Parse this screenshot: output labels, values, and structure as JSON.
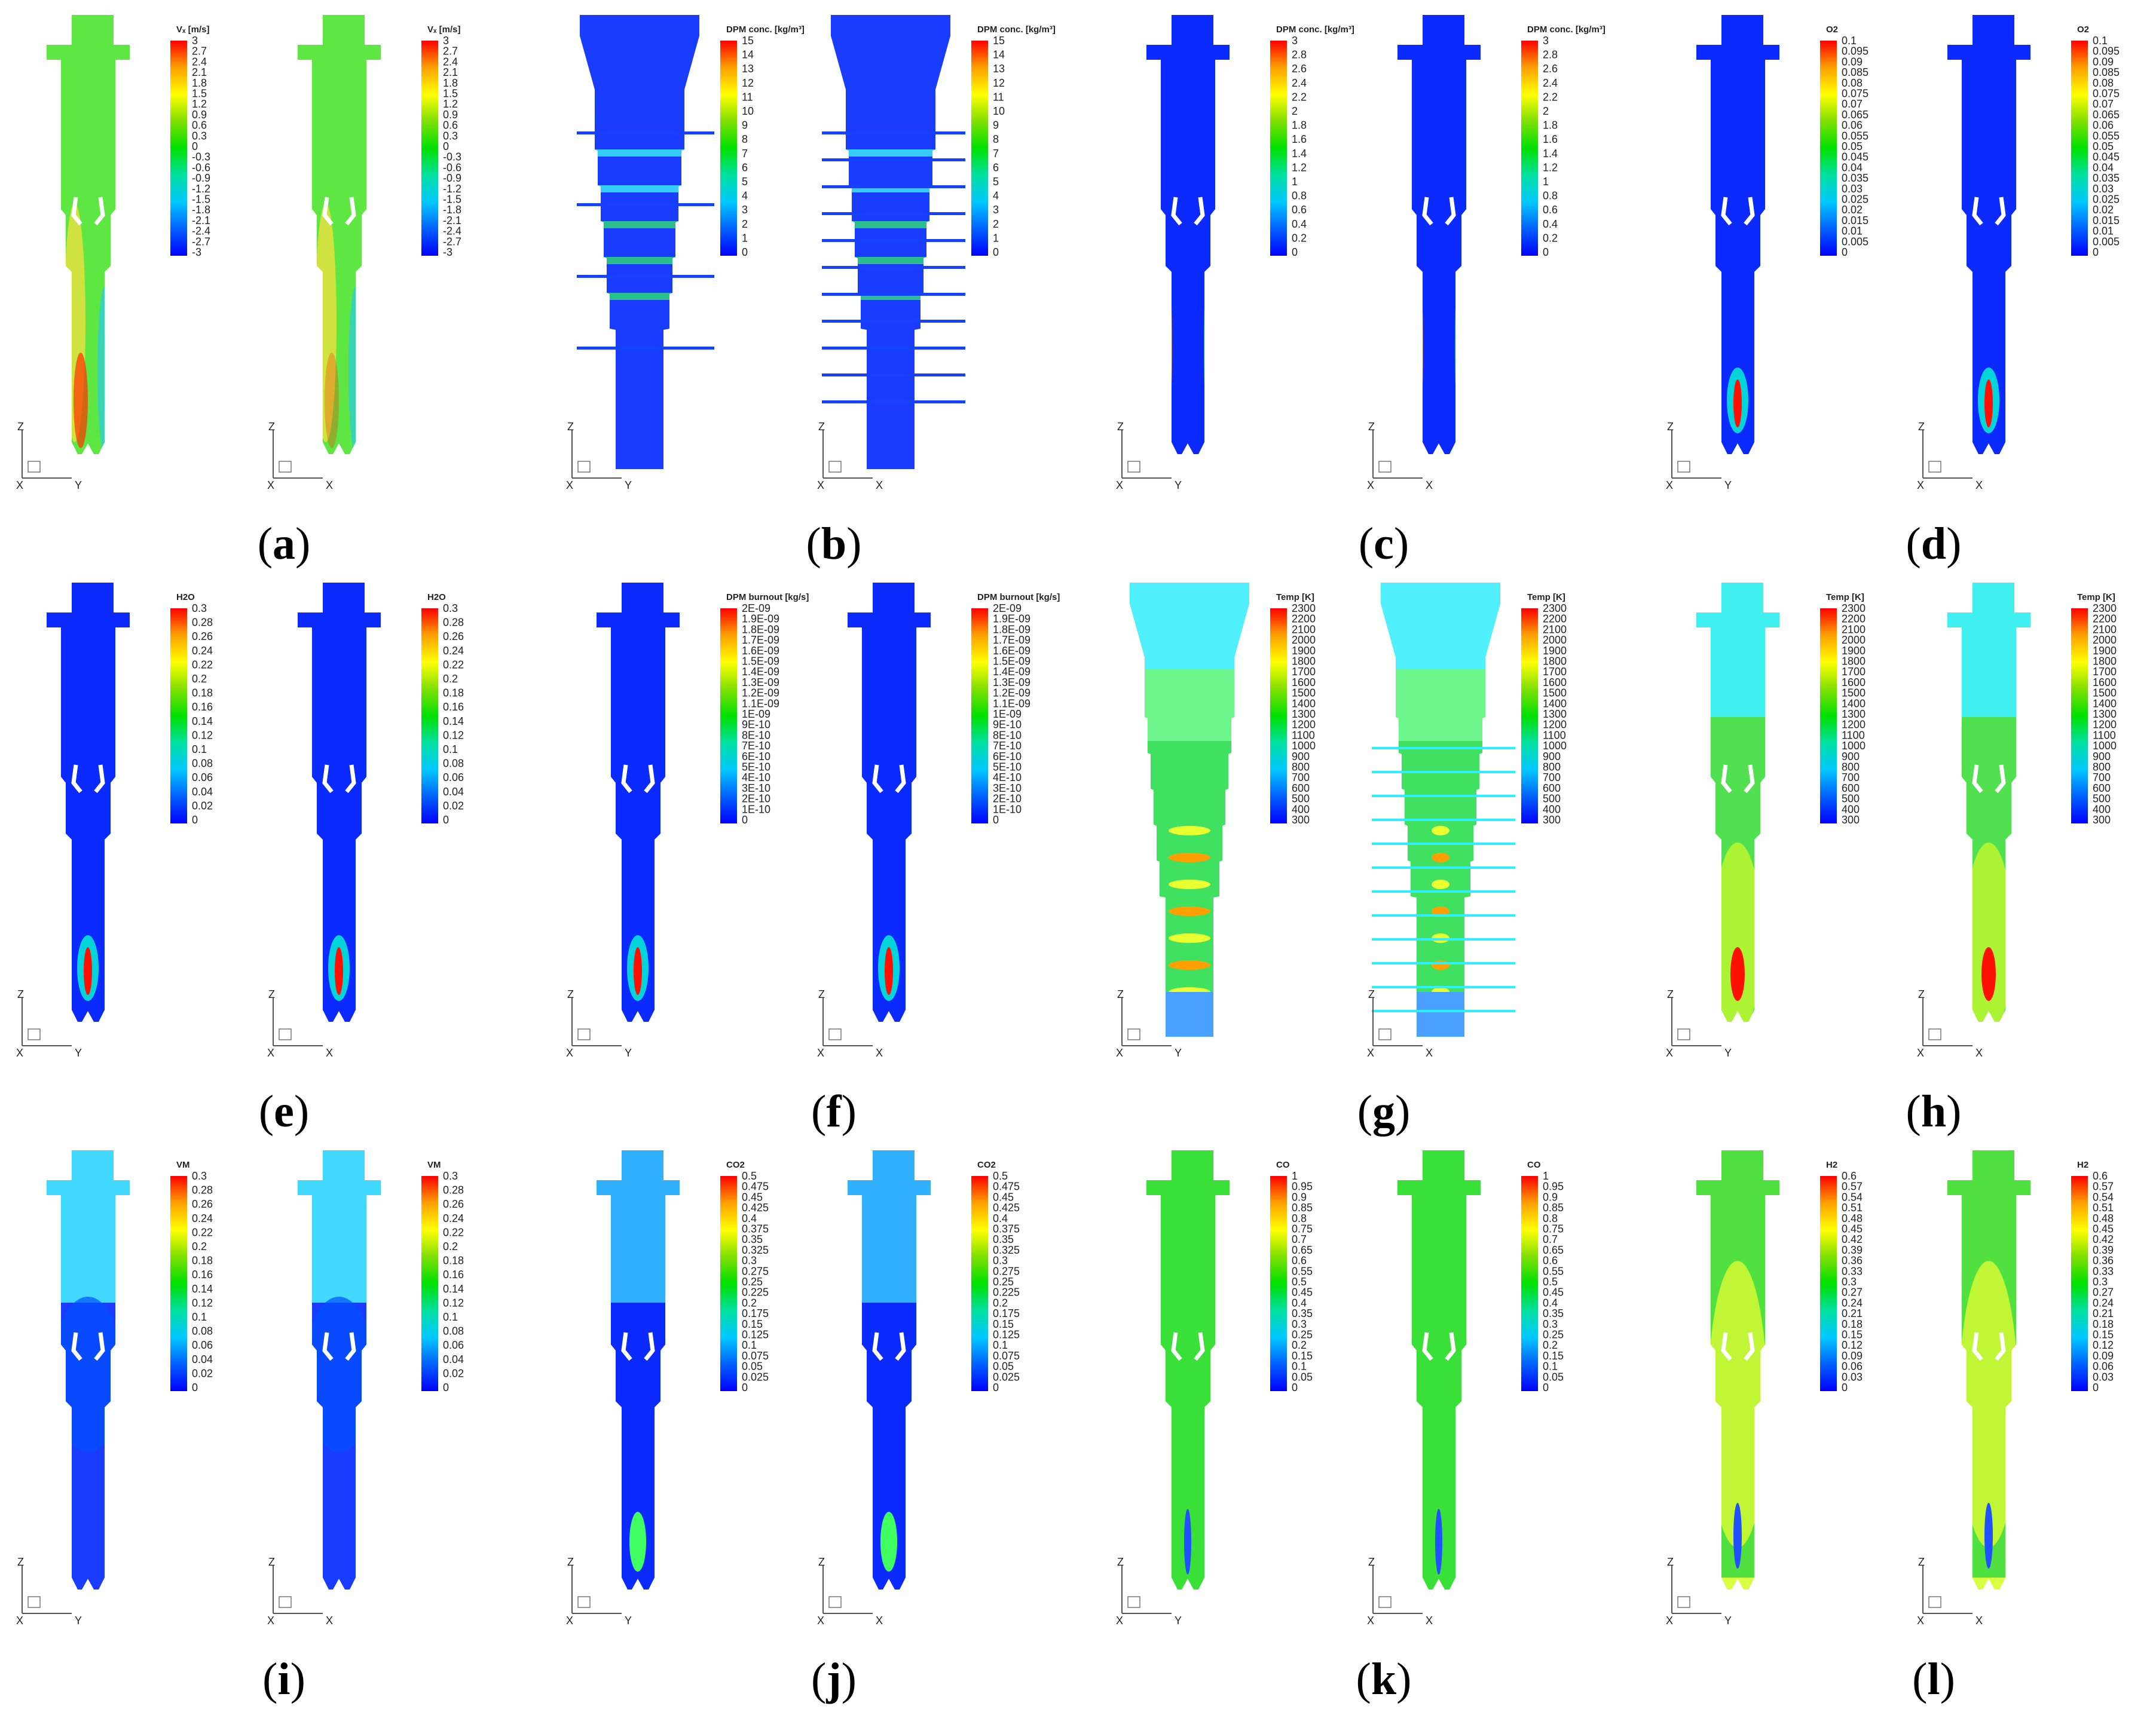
{
  "colors": {
    "scale": [
      "#0000ff",
      "#0060ff",
      "#00c8ff",
      "#00e0a0",
      "#00e000",
      "#80e000",
      "#ffff00",
      "#ffa000",
      "#ff0000"
    ]
  },
  "panels": [
    {
      "label": "a",
      "title": "Vₓ [m/s]",
      "ticks": [
        "3",
        "2.7",
        "2.4",
        "2.1",
        "1.8",
        "1.5",
        "1.2",
        "0.9",
        "0.6",
        "0.3",
        "0",
        "-0.3",
        "-0.6",
        "-0.9",
        "-1.2",
        "-1.5",
        "-1.8",
        "-2.1",
        "-2.4",
        "-2.7",
        "-3"
      ],
      "axes": [
        "Y",
        "X"
      ],
      "bg": "#5ee642",
      "shape": "standard"
    },
    {
      "label": "b",
      "title": "DPM conc. [kg/m³]",
      "ticks": [
        "15",
        "14",
        "13",
        "12",
        "11",
        "10",
        "9",
        "8",
        "7",
        "6",
        "5",
        "4",
        "3",
        "2",
        "1",
        "0"
      ],
      "axes": [
        "Y",
        "X"
      ],
      "bg": "#1a3cff",
      "shape": "funnel"
    },
    {
      "label": "c",
      "title": "DPM conc. [kg/m³]",
      "ticks": [
        "3",
        "2.8",
        "2.6",
        "2.4",
        "2.2",
        "2",
        "1.8",
        "1.6",
        "1.4",
        "1.2",
        "1",
        "0.8",
        "0.6",
        "0.4",
        "0.2",
        "0"
      ],
      "axes": [
        "Y",
        "X"
      ],
      "bg": "#0a2aff",
      "shape": "standard"
    },
    {
      "label": "d",
      "title": "O2",
      "ticks": [
        "0.1",
        "0.095",
        "0.09",
        "0.085",
        "0.08",
        "0.075",
        "0.07",
        "0.065",
        "0.06",
        "0.055",
        "0.05",
        "0.045",
        "0.04",
        "0.035",
        "0.03",
        "0.025",
        "0.02",
        "0.015",
        "0.01",
        "0.005",
        "0"
      ],
      "axes": [
        "Y",
        "X"
      ],
      "bg": "#0a2aff",
      "shape": "standard"
    },
    {
      "label": "e",
      "title": "H2O",
      "ticks": [
        "0.3",
        "0.28",
        "0.26",
        "0.24",
        "0.22",
        "0.2",
        "0.18",
        "0.16",
        "0.14",
        "0.12",
        "0.1",
        "0.08",
        "0.06",
        "0.04",
        "0.02",
        "0"
      ],
      "axes": [
        "Y",
        "X"
      ],
      "bg": "#0a2aff",
      "shape": "standard"
    },
    {
      "label": "f",
      "title": "DPM burnout [kg/s]",
      "ticks": [
        "2E-09",
        "1.9E-09",
        "1.8E-09",
        "1.7E-09",
        "1.6E-09",
        "1.5E-09",
        "1.4E-09",
        "1.3E-09",
        "1.2E-09",
        "1.1E-09",
        "1E-09",
        "9E-10",
        "8E-10",
        "7E-10",
        "6E-10",
        "5E-10",
        "4E-10",
        "3E-10",
        "2E-10",
        "1E-10",
        "0"
      ],
      "axes": [
        "Y",
        "X"
      ],
      "bg": "#0a2aff",
      "shape": "standard"
    },
    {
      "label": "g",
      "title": "Temp [K]",
      "ticks": [
        "2300",
        "2200",
        "2100",
        "2000",
        "1900",
        "1800",
        "1700",
        "1600",
        "1500",
        "1400",
        "1300",
        "1200",
        "1100",
        "1000",
        "900",
        "800",
        "700",
        "600",
        "500",
        "400",
        "300"
      ],
      "axes": [
        "Y",
        "X"
      ],
      "bg": "#40e060",
      "shape": "funnel"
    },
    {
      "label": "h",
      "title": "Temp [K]",
      "ticks": [
        "2300",
        "2200",
        "2100",
        "2000",
        "1900",
        "1800",
        "1700",
        "1600",
        "1500",
        "1400",
        "1300",
        "1200",
        "1100",
        "1000",
        "900",
        "800",
        "700",
        "600",
        "500",
        "400",
        "300"
      ],
      "axes": [
        "Y",
        "X"
      ],
      "bg": "#50e050",
      "shape": "standard"
    },
    {
      "label": "i",
      "title": "VM",
      "ticks": [
        "0.3",
        "0.28",
        "0.26",
        "0.24",
        "0.22",
        "0.2",
        "0.18",
        "0.16",
        "0.14",
        "0.12",
        "0.1",
        "0.08",
        "0.06",
        "0.04",
        "0.02",
        "0"
      ],
      "axes": [
        "Y",
        "X"
      ],
      "bg": "#1a3cff",
      "shape": "standard"
    },
    {
      "label": "j",
      "title": "CO2",
      "ticks": [
        "0.5",
        "0.475",
        "0.45",
        "0.425",
        "0.4",
        "0.375",
        "0.35",
        "0.325",
        "0.3",
        "0.275",
        "0.25",
        "0.225",
        "0.2",
        "0.175",
        "0.15",
        "0.125",
        "0.1",
        "0.075",
        "0.05",
        "0.025",
        "0"
      ],
      "axes": [
        "Y",
        "X"
      ],
      "bg": "#0a2aff",
      "shape": "standard"
    },
    {
      "label": "k",
      "title": "CO",
      "ticks": [
        "1",
        "0.95",
        "0.9",
        "0.85",
        "0.8",
        "0.75",
        "0.7",
        "0.65",
        "0.6",
        "0.55",
        "0.5",
        "0.45",
        "0.4",
        "0.35",
        "0.3",
        "0.25",
        "0.2",
        "0.15",
        "0.1",
        "0.05",
        "0"
      ],
      "axes": [
        "Y",
        "X"
      ],
      "bg": "#38e038",
      "shape": "standard"
    },
    {
      "label": "l",
      "title": "H2",
      "ticks": [
        "0.6",
        "0.57",
        "0.54",
        "0.51",
        "0.48",
        "0.45",
        "0.42",
        "0.39",
        "0.36",
        "0.33",
        "0.3",
        "0.27",
        "0.24",
        "0.21",
        "0.18",
        "0.15",
        "0.12",
        "0.09",
        "0.06",
        "0.03",
        "0"
      ],
      "axes": [
        "Y",
        "X"
      ],
      "bg": "#50e040",
      "shape": "standard"
    }
  ]
}
